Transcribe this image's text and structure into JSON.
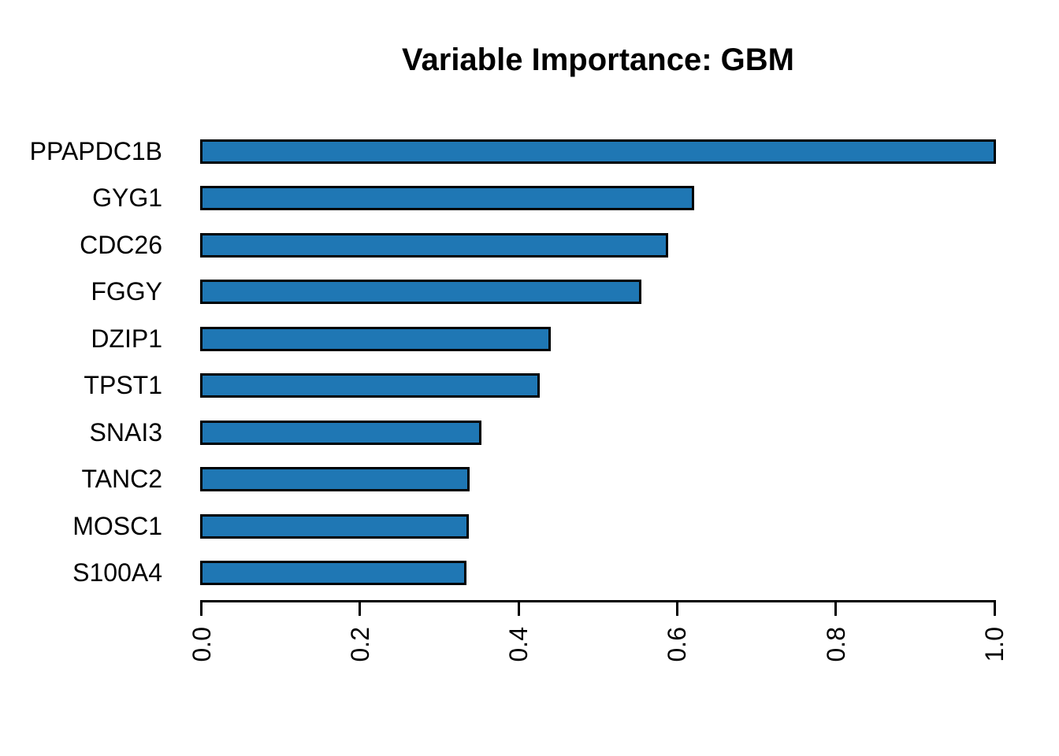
{
  "title": "Variable Importance: GBM",
  "chart_data": {
    "type": "bar",
    "orientation": "horizontal",
    "title": "Variable Importance: GBM",
    "categories": [
      "PPAPDC1B",
      "GYG1",
      "CDC26",
      "FGGY",
      "DZIP1",
      "TPST1",
      "SNAI3",
      "TANC2",
      "MOSC1",
      "S100A4"
    ],
    "values": [
      1.0,
      0.62,
      0.587,
      0.553,
      0.439,
      0.425,
      0.352,
      0.337,
      0.336,
      0.333
    ],
    "xlabel": "",
    "ylabel": "",
    "xlim": [
      0.0,
      1.0
    ],
    "x_ticks": [
      0.0,
      0.2,
      0.4,
      0.6,
      0.8,
      1.0
    ],
    "x_tick_labels": [
      "0.0",
      "0.2",
      "0.4",
      "0.6",
      "0.8",
      "1.0"
    ],
    "x_tick_label_rotation_deg": 90,
    "grid": false,
    "legend_position": "none",
    "bar_fill_color": "#1f77b4",
    "bar_border_color": "#000000",
    "background_color": "#ffffff",
    "text_color": "#000000"
  }
}
